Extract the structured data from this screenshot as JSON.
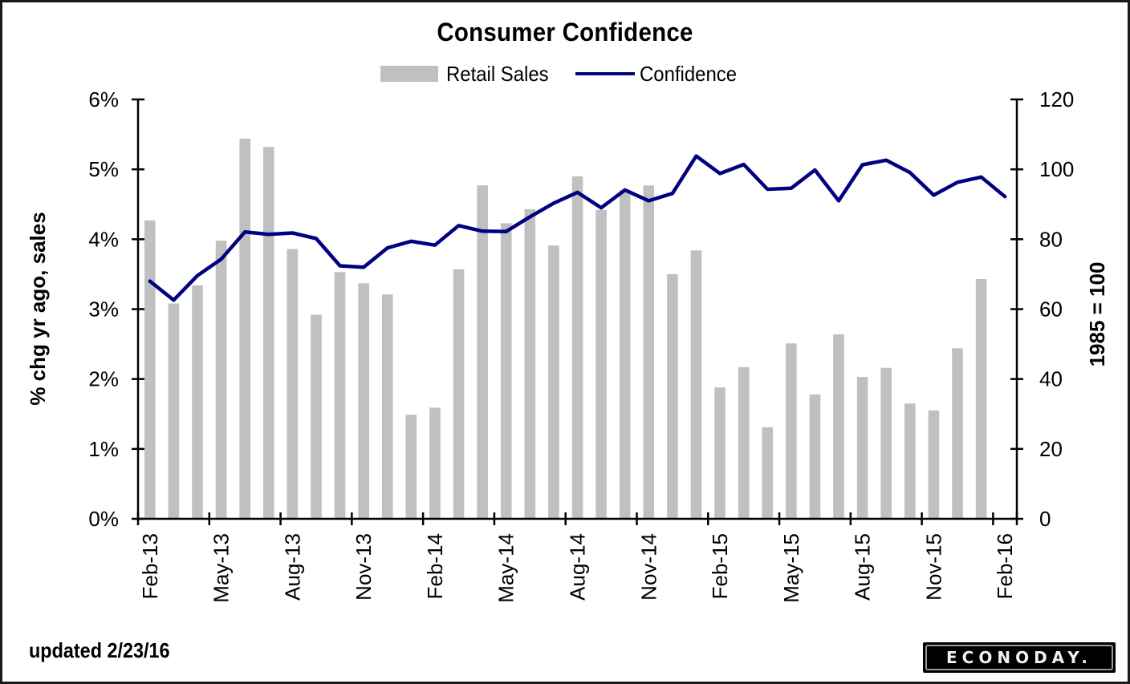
{
  "chart_data": {
    "type": "bar",
    "title": "Consumer Confidence",
    "legend": [
      "Retail Sales",
      "Confidence"
    ],
    "legend_position": "top-center",
    "ylabel_left": "% chg yr ago, sales",
    "ylabel_right": "1985 = 100",
    "ylim_left": [
      0,
      6
    ],
    "ylim_right": [
      0,
      120
    ],
    "yticks_left": [
      "0%",
      "1%",
      "2%",
      "3%",
      "4%",
      "5%",
      "6%"
    ],
    "yticks_right": [
      "0",
      "20",
      "40",
      "60",
      "80",
      "100",
      "120"
    ],
    "grid": false,
    "categories": [
      "Feb-13",
      "Mar-13",
      "Apr-13",
      "May-13",
      "Jun-13",
      "Jul-13",
      "Aug-13",
      "Sep-13",
      "Oct-13",
      "Nov-13",
      "Dec-13",
      "Jan-14",
      "Feb-14",
      "Mar-14",
      "Apr-14",
      "May-14",
      "Jun-14",
      "Jul-14",
      "Aug-14",
      "Sep-14",
      "Oct-14",
      "Nov-14",
      "Dec-14",
      "Jan-15",
      "Feb-15",
      "Mar-15",
      "Apr-15",
      "May-15",
      "Jun-15",
      "Jul-15",
      "Aug-15",
      "Sep-15",
      "Oct-15",
      "Nov-15",
      "Dec-15",
      "Jan-16",
      "Feb-16"
    ],
    "xtick_labels": [
      "Feb-13",
      "May-13",
      "Aug-13",
      "Nov-13",
      "Feb-14",
      "May-14",
      "Aug-14",
      "Nov-14",
      "Feb-15",
      "May-15",
      "Aug-15",
      "Nov-15",
      "Feb-16"
    ],
    "series": [
      {
        "name": "Retail Sales",
        "type": "bar",
        "axis": "left",
        "color": "#c0c0c0",
        "values": [
          4.27,
          3.08,
          3.34,
          3.98,
          5.44,
          5.32,
          3.86,
          2.92,
          3.53,
          3.37,
          3.21,
          1.49,
          1.59,
          3.57,
          4.77,
          4.23,
          4.43,
          3.91,
          4.9,
          4.42,
          4.7,
          4.77,
          3.5,
          3.84,
          1.88,
          2.17,
          1.31,
          2.51,
          1.78,
          2.64,
          2.03,
          2.16,
          1.65,
          1.55,
          2.44,
          3.43,
          null
        ]
      },
      {
        "name": "Confidence",
        "type": "line",
        "axis": "right",
        "color": "#000080",
        "values": [
          68.0,
          62.6,
          69.6,
          74.3,
          82.1,
          81.4,
          81.8,
          80.2,
          72.4,
          72.0,
          77.5,
          79.4,
          78.3,
          83.9,
          82.3,
          82.2,
          86.4,
          90.3,
          93.4,
          89.0,
          94.1,
          91.0,
          93.1,
          103.8,
          98.8,
          101.4,
          94.3,
          94.6,
          99.8,
          91.0,
          101.3,
          102.6,
          99.1,
          92.6,
          96.3,
          97.8,
          92.2
        ]
      }
    ]
  },
  "footer": {
    "updated": "updated 2/23/16",
    "logo": "ECONODAY."
  }
}
